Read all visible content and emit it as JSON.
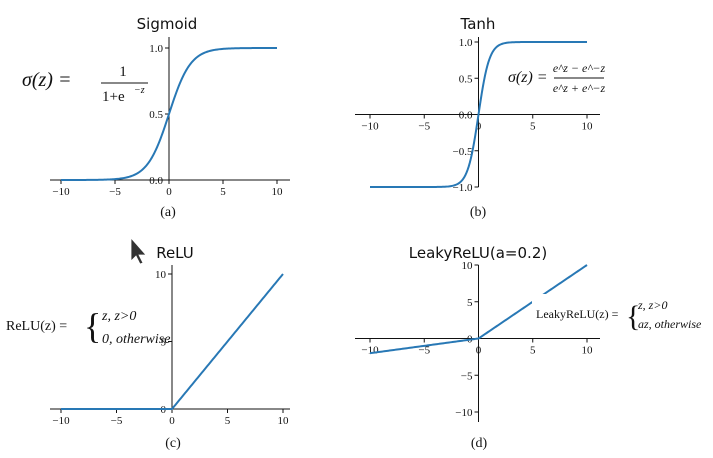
{
  "chart_data": [
    {
      "id": "sigmoid",
      "type": "line",
      "title": "Sigmoid",
      "caption": "(a)",
      "function": "sigmoid",
      "x_ticks": [
        -10,
        -5,
        0,
        5,
        10
      ],
      "y_ticks": [
        0.0,
        0.5,
        1.0
      ],
      "x_tick_labels": [
        "−10",
        "−5",
        "0",
        "5",
        "10"
      ],
      "y_tick_labels": [
        "0.0",
        "0.5",
        "1.0"
      ],
      "xlim": [
        -10,
        10
      ],
      "ylim": [
        0,
        1
      ],
      "formula": {
        "lhs": "σ(z) =",
        "numerator": "1",
        "denominator": "1+e",
        "denominator_sup": "−z"
      }
    },
    {
      "id": "tanh",
      "type": "line",
      "title": "Tanh",
      "caption": "(b)",
      "function": "tanh",
      "x_ticks": [
        -10,
        -5,
        0,
        5,
        10
      ],
      "y_ticks": [
        -1.0,
        -0.5,
        0.0,
        0.5,
        1.0
      ],
      "x_tick_labels": [
        "−10",
        "−5",
        "0",
        "5",
        "10"
      ],
      "y_tick_labels": [
        "−1.0",
        "−0.5",
        "0.0",
        "0.5",
        "1.0"
      ],
      "xlim": [
        -10,
        10
      ],
      "ylim": [
        -1,
        1
      ],
      "formula": {
        "lhs": "σ(z) =",
        "numerator": "e^z − e^−z",
        "denominator": "e^z + e^−z"
      }
    },
    {
      "id": "relu",
      "type": "line",
      "title": "ReLU",
      "caption": "(c)",
      "function": "relu",
      "x_ticks": [
        -10,
        -5,
        0,
        5,
        10
      ],
      "y_ticks": [
        0,
        5,
        10
      ],
      "x_tick_labels": [
        "−10",
        "−5",
        "0",
        "5",
        "10"
      ],
      "y_tick_labels": [
        "0",
        "5",
        "10"
      ],
      "xlim": [
        -10,
        10
      ],
      "ylim": [
        0,
        10
      ],
      "formula": {
        "lhs": "ReLU(z) =",
        "case1": "z, z>0",
        "case2": "0, otherwise"
      }
    },
    {
      "id": "leakyrelu",
      "type": "line",
      "title": "LeakyReLU(a=0.2)",
      "caption": "(d)",
      "function": "leaky_relu",
      "a": 0.2,
      "x_ticks": [
        -10,
        -5,
        0,
        5,
        10
      ],
      "y_ticks": [
        -10,
        -5,
        0,
        5,
        10
      ],
      "x_tick_labels": [
        "−10",
        "−5",
        "0",
        "5",
        "10"
      ],
      "y_tick_labels": [
        "−10",
        "−5",
        "0",
        "5",
        "10"
      ],
      "xlim": [
        -10,
        10
      ],
      "ylim": [
        -10,
        10
      ],
      "formula": {
        "lhs": "LeakyReLU(z) =",
        "case1": "z, z>0",
        "case2": "az, otherwise"
      }
    }
  ]
}
